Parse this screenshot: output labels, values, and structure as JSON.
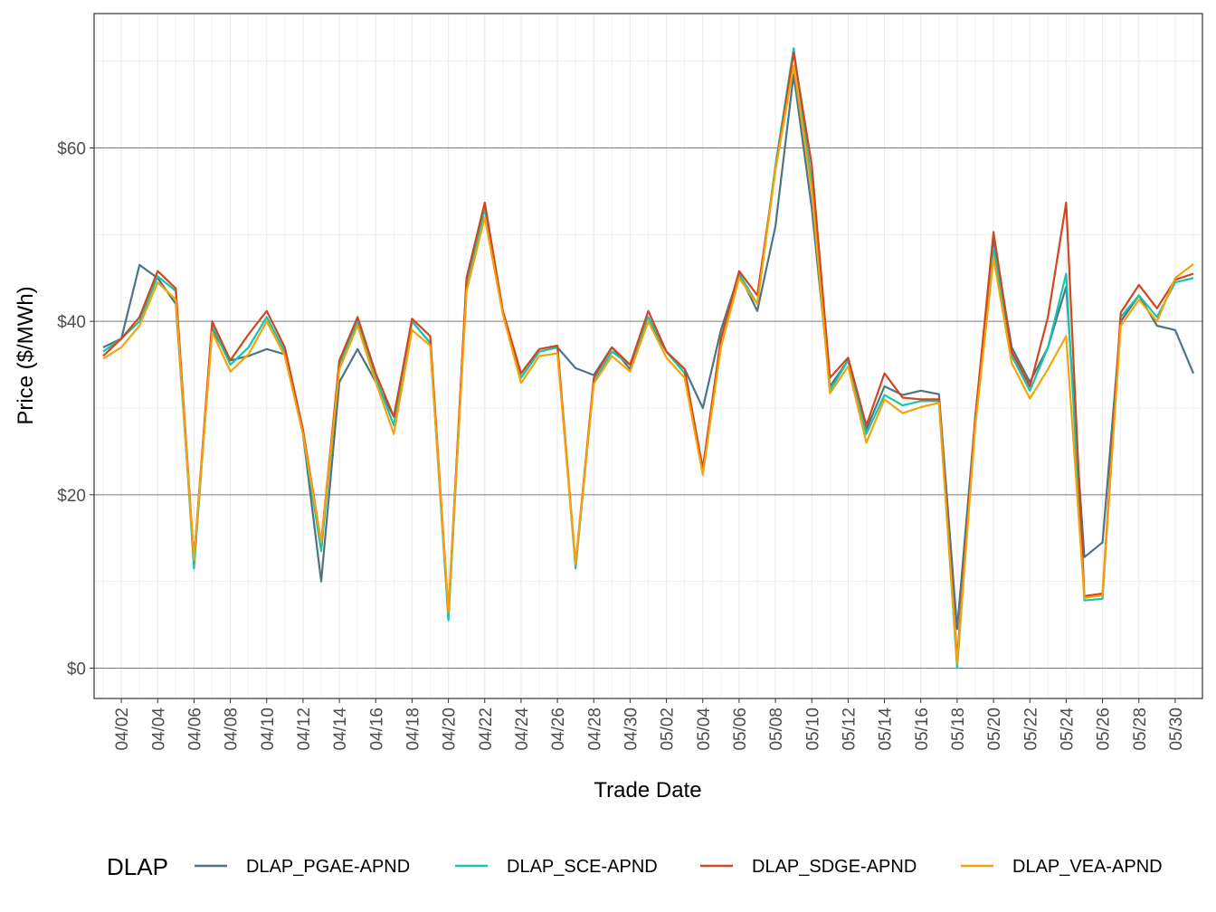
{
  "chart_data": {
    "type": "line",
    "xlabel": "Trade Date",
    "ylabel": "Price ($/MWh)",
    "ylim": [
      -3.5,
      75.5
    ],
    "y_ticks": [
      0,
      20,
      40,
      60
    ],
    "y_tick_labels": [
      "$0",
      "$20",
      "$40",
      "$60"
    ],
    "x_tick_labels": [
      "04/02",
      "04/04",
      "04/06",
      "04/08",
      "04/10",
      "04/12",
      "04/14",
      "04/16",
      "04/18",
      "04/20",
      "04/22",
      "04/24",
      "04/26",
      "04/28",
      "04/30",
      "05/02",
      "05/04",
      "05/06",
      "05/08",
      "05/10",
      "05/12",
      "05/14",
      "05/16",
      "05/18",
      "05/20",
      "05/22",
      "05/24",
      "05/26",
      "05/28",
      "05/30"
    ],
    "grid": true,
    "legend": {
      "title": "DLAP",
      "position": "bottom"
    },
    "x": [
      "04/01",
      "04/02",
      "04/03",
      "04/04",
      "04/05",
      "04/06",
      "04/07",
      "04/08",
      "04/09",
      "04/10",
      "04/11",
      "04/12",
      "04/13",
      "04/14",
      "04/15",
      "04/16",
      "04/17",
      "04/18",
      "04/19",
      "04/20",
      "04/21",
      "04/22",
      "04/23",
      "04/24",
      "04/25",
      "04/26",
      "04/27",
      "04/28",
      "04/29",
      "04/30",
      "05/01",
      "05/02",
      "05/03",
      "05/04",
      "05/05",
      "05/06",
      "05/07",
      "05/08",
      "05/09",
      "05/10",
      "05/11",
      "05/12",
      "05/13",
      "05/14",
      "05/15",
      "05/16",
      "05/17",
      "05/18",
      "05/19",
      "05/20",
      "05/21",
      "05/22",
      "05/23",
      "05/24",
      "05/25",
      "05/26",
      "05/27",
      "05/28",
      "05/29",
      "05/30",
      "05/31"
    ],
    "series": [
      {
        "name": "DLAP_PGAE-APND",
        "color": "#4d7485",
        "values": [
          37,
          38,
          46.5,
          45,
          42,
          12.5,
          39,
          35.5,
          36,
          36.8,
          36.2,
          27,
          10,
          33,
          36.8,
          33,
          29,
          40,
          37.5,
          6,
          45,
          53.5,
          41,
          33.5,
          36.5,
          37,
          34.6,
          33.8,
          37,
          34.5,
          40,
          36.5,
          34.5,
          30,
          39,
          45.5,
          41.2,
          51,
          68.5,
          53,
          32.5,
          35.5,
          27.5,
          32.5,
          31.5,
          32,
          31.6,
          4.5,
          29,
          49.5,
          37,
          33,
          37,
          44,
          12.8,
          14.5,
          40,
          43,
          39.5,
          39,
          34
        ]
      },
      {
        "name": "DLAP_SCE-APND",
        "color": "#17c4b0",
        "values": [
          36.5,
          38,
          40,
          45.2,
          43.5,
          11.5,
          39.5,
          35,
          37,
          40.5,
          36.5,
          27,
          13.5,
          35,
          40,
          33.5,
          28,
          40,
          37.5,
          5.5,
          44,
          53,
          41,
          33.5,
          36.5,
          37,
          11.5,
          33,
          36.5,
          35,
          40.5,
          36.5,
          34,
          23,
          38,
          45.5,
          42,
          58,
          71.5,
          56,
          32,
          35.5,
          27,
          31.5,
          30.3,
          30.8,
          30.8,
          0,
          29,
          48.5,
          36,
          32,
          37,
          45.5,
          7.8,
          8,
          40.5,
          43,
          40.5,
          44.5,
          45
        ]
      },
      {
        "name": "DLAP_SDGE-APND",
        "color": "#d2451e",
        "values": [
          36,
          38,
          40.5,
          45.8,
          43.8,
          12.5,
          40,
          35.5,
          38.5,
          41.2,
          37,
          27.5,
          14.5,
          35.5,
          40.5,
          34,
          29,
          40.3,
          38.3,
          6.5,
          45,
          53.7,
          41.2,
          34,
          36.8,
          37.2,
          12,
          33.5,
          37,
          35,
          41.2,
          36.5,
          34.5,
          23,
          38,
          45.8,
          43,
          57.5,
          71,
          58,
          33.5,
          35.8,
          28,
          34,
          31.2,
          31,
          31,
          1,
          29,
          50.3,
          36.5,
          32.5,
          40.5,
          53.7,
          8.3,
          8.6,
          41,
          44.2,
          41.5,
          44.8,
          45.5
        ]
      },
      {
        "name": "DLAP_VEA-APND",
        "color": "#f5a30a",
        "values": [
          35.7,
          37,
          39.5,
          44.5,
          42.5,
          12.5,
          38.8,
          34.2,
          36.2,
          40,
          36,
          27,
          14.5,
          34.5,
          39.5,
          33,
          27,
          39,
          37.2,
          6.5,
          43.5,
          52,
          40.8,
          32.9,
          36,
          36.3,
          12,
          32.8,
          36,
          34.2,
          40,
          35.8,
          33.5,
          22.3,
          37,
          45,
          42,
          57.5,
          69.5,
          55,
          31.7,
          34.8,
          26,
          31,
          29.4,
          30.1,
          30.6,
          0.5,
          28,
          47.3,
          35.2,
          31.1,
          34.5,
          38.3,
          8.1,
          8.4,
          39.5,
          42.5,
          40,
          45,
          46.6
        ]
      }
    ]
  }
}
